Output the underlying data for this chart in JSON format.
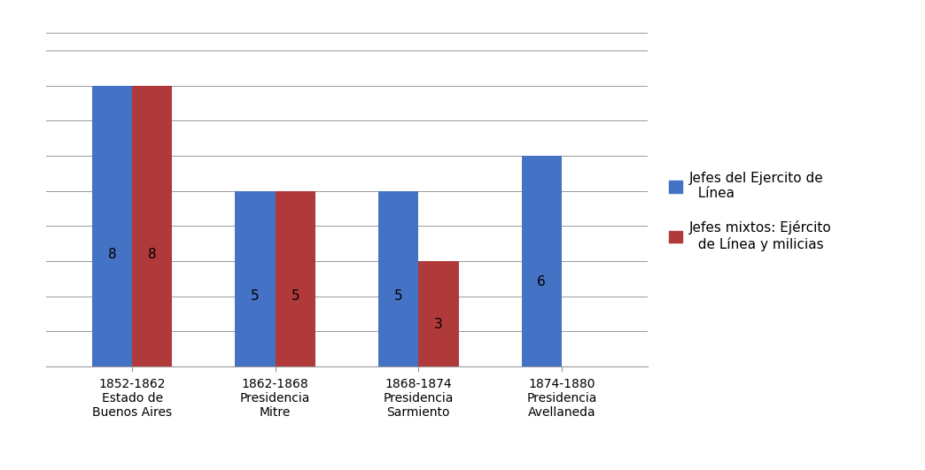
{
  "categories": [
    "1852-1862\nEstado de\nBuenos Aires",
    "1862-1868\nPresidencia\nMitre",
    "1868-1874\nPresidencia\nSarmiento",
    "1874-1880\nPresidencia\nAvellaneda"
  ],
  "series1_label": "Jefes del Ejercito de\n  Línea",
  "series2_label": "Jefes mixtos: Ejército\n  de Línea y milicias",
  "series1_values": [
    8,
    5,
    5,
    6
  ],
  "series2_values": [
    8,
    5,
    3,
    0
  ],
  "series1_color": "#4472C4",
  "series2_color": "#B03A3A",
  "bar_width": 0.28,
  "ylim": [
    0,
    9.5
  ],
  "background_color": "#ffffff",
  "grid_color": "#999999",
  "text_color": "#000000",
  "label_fontsize": 11,
  "tick_fontsize": 10,
  "legend_fontsize": 11
}
